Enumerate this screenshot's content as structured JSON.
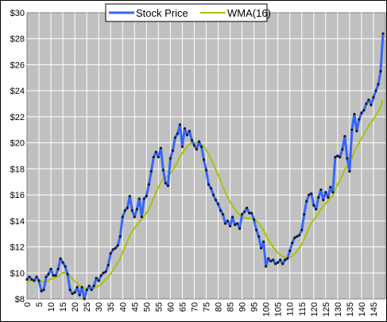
{
  "chart_data": {
    "type": "line",
    "title": "",
    "xlabel": "",
    "ylabel": "",
    "x": [
      0,
      1,
      2,
      3,
      4,
      5,
      6,
      7,
      8,
      9,
      10,
      11,
      12,
      13,
      14,
      15,
      16,
      17,
      18,
      19,
      20,
      21,
      22,
      23,
      24,
      25,
      26,
      27,
      28,
      29,
      30,
      31,
      32,
      33,
      34,
      35,
      36,
      37,
      38,
      39,
      40,
      41,
      42,
      43,
      44,
      45,
      46,
      47,
      48,
      49,
      50,
      51,
      52,
      53,
      54,
      55,
      56,
      57,
      58,
      59,
      60,
      61,
      62,
      63,
      64,
      65,
      66,
      67,
      68,
      69,
      70,
      71,
      72,
      73,
      74,
      75,
      76,
      77,
      78,
      79,
      80,
      81,
      82,
      83,
      84,
      85,
      86,
      87,
      88,
      89,
      90,
      91,
      92,
      93,
      94,
      95,
      96,
      97,
      98,
      99,
      100,
      101,
      102,
      103,
      104,
      105,
      106,
      107,
      108,
      109,
      110,
      111,
      112,
      113,
      114,
      115,
      116,
      117,
      118,
      119,
      120,
      121,
      122,
      123,
      124,
      125,
      126,
      127,
      128,
      129,
      130,
      131,
      132,
      133,
      134,
      135,
      136,
      137,
      138,
      139,
      140,
      141,
      142,
      143,
      144,
      145,
      146,
      147,
      148,
      149
    ],
    "xticks": [
      0,
      5,
      10,
      15,
      20,
      25,
      30,
      35,
      40,
      45,
      50,
      55,
      60,
      65,
      70,
      75,
      80,
      85,
      90,
      95,
      100,
      105,
      110,
      115,
      120,
      125,
      130,
      135,
      140,
      145
    ],
    "xlim": [
      0,
      150
    ],
    "ylim": [
      8,
      30
    ],
    "yticks": [
      8,
      10,
      12,
      14,
      16,
      18,
      20,
      22,
      24,
      26,
      28,
      30
    ],
    "y_tick_format": "$",
    "grid": true,
    "plot_background": "#c0c0c0",
    "legend_position": "top-center",
    "series": [
      {
        "name": "Stock Price",
        "color": "#3366ff",
        "marker": "dot",
        "values": [
          9.5,
          9.7,
          9.5,
          9.4,
          9.7,
          9.4,
          8.6,
          8.7,
          9.7,
          9.9,
          10.3,
          9.8,
          9.8,
          10.3,
          11.1,
          10.8,
          10.5,
          9.9,
          8.7,
          8.4,
          8.5,
          8.9,
          8.3,
          8.9,
          8.0,
          8.7,
          9.0,
          8.7,
          9.0,
          9.6,
          9.4,
          9.8,
          10.0,
          10.1,
          10.6,
          11.5,
          11.8,
          11.9,
          12.1,
          12.8,
          14.3,
          14.8,
          15.0,
          15.9,
          14.8,
          14.3,
          14.9,
          15.7,
          14.3,
          15.7,
          15.9,
          16.8,
          17.8,
          18.9,
          19.3,
          18.9,
          19.6,
          17.9,
          16.9,
          16.7,
          18.8,
          19.4,
          20.4,
          20.7,
          21.4,
          19.7,
          21.1,
          20.6,
          20.9,
          20.2,
          19.8,
          19.5,
          20.1,
          19.7,
          18.7,
          17.9,
          16.8,
          16.5,
          16.0,
          15.6,
          15.3,
          14.8,
          14.5,
          13.8,
          14.0,
          13.6,
          14.3,
          13.7,
          13.8,
          13.4,
          14.5,
          14.7,
          15.0,
          14.6,
          14.6,
          14.1,
          13.3,
          12.8,
          11.9,
          12.4,
          10.5,
          11.1,
          10.9,
          11.0,
          10.7,
          10.8,
          11.0,
          10.7,
          11.0,
          11.1,
          11.7,
          12.3,
          12.7,
          12.8,
          12.9,
          13.3,
          14.5,
          15.5,
          16.0,
          16.1,
          15.2,
          14.9,
          15.8,
          16.4,
          15.6,
          16.2,
          15.8,
          16.6,
          16.2,
          18.9,
          19.0,
          18.9,
          19.5,
          20.5,
          18.8,
          17.8,
          21.0,
          22.2,
          20.9,
          21.8,
          22.3,
          22.5,
          23.0,
          23.3,
          22.9,
          23.5,
          24.0,
          24.5,
          25.5,
          28.4
        ]
      },
      {
        "name": "WMA(16)",
        "color": "#a5c40c",
        "values": [
          9.3,
          9.4,
          9.45,
          9.45,
          9.5,
          9.5,
          9.35,
          9.3,
          9.3,
          9.4,
          9.55,
          9.6,
          9.65,
          9.75,
          9.9,
          10.0,
          10.05,
          9.95,
          9.75,
          9.55,
          9.35,
          9.2,
          9.0,
          8.95,
          8.8,
          8.75,
          8.75,
          8.75,
          8.8,
          8.9,
          9.0,
          9.15,
          9.35,
          9.5,
          9.7,
          9.95,
          10.2,
          10.5,
          10.8,
          11.1,
          11.55,
          12.0,
          12.4,
          12.85,
          13.2,
          13.45,
          13.7,
          13.95,
          14.1,
          14.35,
          14.6,
          14.9,
          15.3,
          15.75,
          16.2,
          16.6,
          16.95,
          17.2,
          17.35,
          17.45,
          17.65,
          17.9,
          18.2,
          18.55,
          18.95,
          19.2,
          19.5,
          19.7,
          19.9,
          20.0,
          20.0,
          19.95,
          19.95,
          19.85,
          19.7,
          19.45,
          19.1,
          18.75,
          18.35,
          17.95,
          17.55,
          17.1,
          16.65,
          16.2,
          15.8,
          15.45,
          15.15,
          14.9,
          14.65,
          14.45,
          14.3,
          14.25,
          14.2,
          14.2,
          14.2,
          14.1,
          14.0,
          13.85,
          13.55,
          13.3,
          12.9,
          12.55,
          12.25,
          12.0,
          11.75,
          11.55,
          11.4,
          11.25,
          11.2,
          11.15,
          11.2,
          11.3,
          11.45,
          11.7,
          11.95,
          12.2,
          12.6,
          13.0,
          13.45,
          13.85,
          14.1,
          14.3,
          14.6,
          14.9,
          15.1,
          15.35,
          15.55,
          15.8,
          15.95,
          16.4,
          16.8,
          17.15,
          17.5,
          17.95,
          18.2,
          18.4,
          18.85,
          19.35,
          19.65,
          20.0,
          20.35,
          20.65,
          21.0,
          21.3,
          21.55,
          21.8,
          22.1,
          22.4,
          22.75,
          23.3
        ]
      }
    ]
  }
}
